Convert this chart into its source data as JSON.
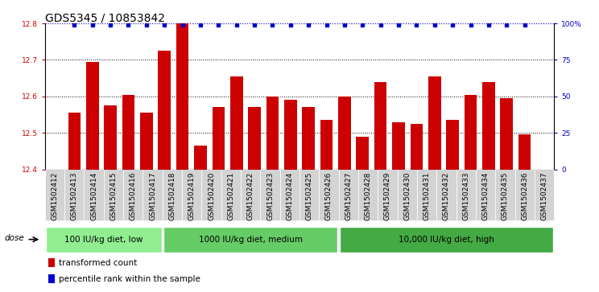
{
  "title": "GDS5345 / 10853842",
  "categories": [
    "GSM1502412",
    "GSM1502413",
    "GSM1502414",
    "GSM1502415",
    "GSM1502416",
    "GSM1502417",
    "GSM1502418",
    "GSM1502419",
    "GSM1502420",
    "GSM1502421",
    "GSM1502422",
    "GSM1502423",
    "GSM1502424",
    "GSM1502425",
    "GSM1502426",
    "GSM1502427",
    "GSM1502428",
    "GSM1502429",
    "GSM1502430",
    "GSM1502431",
    "GSM1502432",
    "GSM1502433",
    "GSM1502434",
    "GSM1502435",
    "GSM1502436",
    "GSM1502437"
  ],
  "bar_values": [
    12.555,
    12.695,
    12.575,
    12.605,
    12.555,
    12.725,
    12.8,
    12.465,
    12.57,
    12.655,
    12.57,
    12.6,
    12.59,
    12.57,
    12.535,
    12.6,
    12.49,
    12.64,
    12.53,
    12.525,
    12.655,
    12.535,
    12.605,
    12.64,
    12.595,
    12.495
  ],
  "bar_color": "#cc0000",
  "percentile_color": "#0000cc",
  "ylim_left": [
    12.4,
    12.8
  ],
  "ylim_right": [
    0,
    100
  ],
  "yticks_left": [
    12.4,
    12.5,
    12.6,
    12.7,
    12.8
  ],
  "ytick_labels_left": [
    "12.4",
    "12.5",
    "12.6",
    "12.7",
    "12.8"
  ],
  "yticks_right": [
    0,
    25,
    50,
    75,
    100
  ],
  "ytick_labels_right": [
    "0",
    "25",
    "50",
    "75",
    "100%"
  ],
  "groups": [
    {
      "label": "100 IU/kg diet, low",
      "start": 0,
      "end": 6,
      "color": "#90EE90"
    },
    {
      "label": "1000 IU/kg diet, medium",
      "start": 6,
      "end": 15,
      "color": "#66CC66"
    },
    {
      "label": "10,000 IU/kg diet, high",
      "start": 15,
      "end": 26,
      "color": "#44AA44"
    }
  ],
  "dose_label": "dose",
  "legend_items": [
    {
      "label": "transformed count",
      "color": "#cc0000"
    },
    {
      "label": "percentile rank within the sample",
      "color": "#0000cc"
    }
  ],
  "xtick_bg": "#d3d3d3",
  "plot_bg_color": "#ffffff",
  "fig_bg_color": "#ffffff",
  "title_fontsize": 10,
  "tick_fontsize": 6.5,
  "bar_width": 0.7
}
